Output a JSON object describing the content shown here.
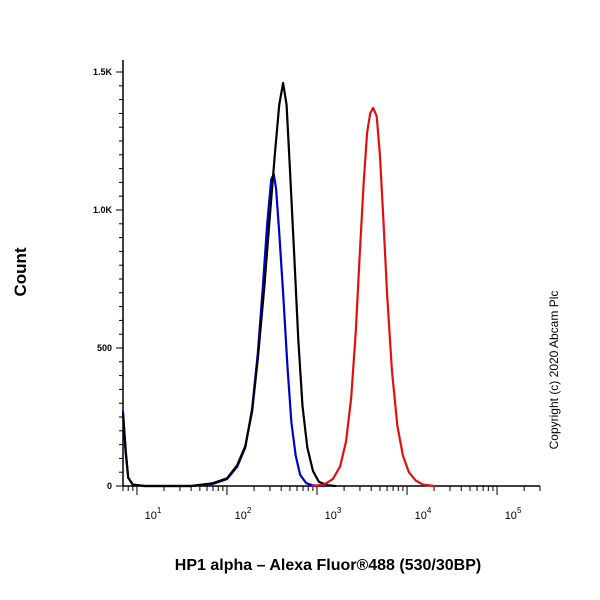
{
  "chart_data": {
    "type": "line",
    "title": "",
    "xlabel": "HP1 alpha – Alexa Fluor®488 (530/30BP)",
    "ylabel": "Count",
    "x_scale": "log",
    "xlim": [
      7,
      300000
    ],
    "ylim": [
      0,
      1500
    ],
    "x_ticks": [
      {
        "base": "10",
        "exp": "1",
        "value": 10
      },
      {
        "base": "10",
        "exp": "2",
        "value": 100
      },
      {
        "base": "10",
        "exp": "3",
        "value": 1000
      },
      {
        "base": "10",
        "exp": "4",
        "value": 10000
      },
      {
        "base": "10",
        "exp": "5",
        "value": 100000
      }
    ],
    "y_ticks": [
      {
        "label": "0",
        "value": 0
      },
      {
        "label": "500",
        "value": 500
      },
      {
        "label": "1.0K",
        "value": 1000
      },
      {
        "label": "1.5K",
        "value": 1500
      }
    ],
    "grid": false,
    "legend": "none",
    "series": [
      {
        "color": "#0000cc",
        "points": [
          [
            7,
            270
          ],
          [
            7.5,
            130
          ],
          [
            8,
            30
          ],
          [
            9,
            5
          ],
          [
            12,
            0
          ],
          [
            40,
            0
          ],
          [
            70,
            8
          ],
          [
            100,
            25
          ],
          [
            130,
            70
          ],
          [
            160,
            140
          ],
          [
            190,
            280
          ],
          [
            220,
            480
          ],
          [
            250,
            720
          ],
          [
            280,
            950
          ],
          [
            310,
            1110
          ],
          [
            330,
            1130
          ],
          [
            350,
            1080
          ],
          [
            380,
            920
          ],
          [
            420,
            700
          ],
          [
            470,
            430
          ],
          [
            520,
            230
          ],
          [
            580,
            110
          ],
          [
            650,
            40
          ],
          [
            760,
            10
          ],
          [
            900,
            2
          ],
          [
            1200,
            0
          ]
        ]
      },
      {
        "color": "#000000",
        "points": [
          [
            7,
            260
          ],
          [
            7.5,
            120
          ],
          [
            8,
            30
          ],
          [
            9,
            5
          ],
          [
            12,
            0
          ],
          [
            40,
            0
          ],
          [
            70,
            10
          ],
          [
            100,
            28
          ],
          [
            130,
            75
          ],
          [
            160,
            145
          ],
          [
            190,
            270
          ],
          [
            220,
            460
          ],
          [
            260,
            720
          ],
          [
            300,
            980
          ],
          [
            340,
            1200
          ],
          [
            380,
            1380
          ],
          [
            420,
            1460
          ],
          [
            460,
            1380
          ],
          [
            500,
            1150
          ],
          [
            560,
            830
          ],
          [
            620,
            530
          ],
          [
            690,
            290
          ],
          [
            780,
            140
          ],
          [
            900,
            55
          ],
          [
            1050,
            15
          ],
          [
            1300,
            3
          ],
          [
            1600,
            0
          ]
        ]
      },
      {
        "color": "#e01010",
        "points": [
          [
            900,
            0
          ],
          [
            1200,
            5
          ],
          [
            1500,
            25
          ],
          [
            1800,
            70
          ],
          [
            2100,
            160
          ],
          [
            2400,
            320
          ],
          [
            2700,
            560
          ],
          [
            3000,
            850
          ],
          [
            3300,
            1100
          ],
          [
            3600,
            1280
          ],
          [
            3900,
            1350
          ],
          [
            4200,
            1370
          ],
          [
            4600,
            1340
          ],
          [
            5000,
            1200
          ],
          [
            5500,
            950
          ],
          [
            6000,
            700
          ],
          [
            6800,
            420
          ],
          [
            7800,
            220
          ],
          [
            9000,
            110
          ],
          [
            10500,
            50
          ],
          [
            12500,
            20
          ],
          [
            15000,
            5
          ],
          [
            20000,
            0
          ]
        ]
      }
    ]
  },
  "copyright": "Copyright (c) 2020 Abcam Plc"
}
